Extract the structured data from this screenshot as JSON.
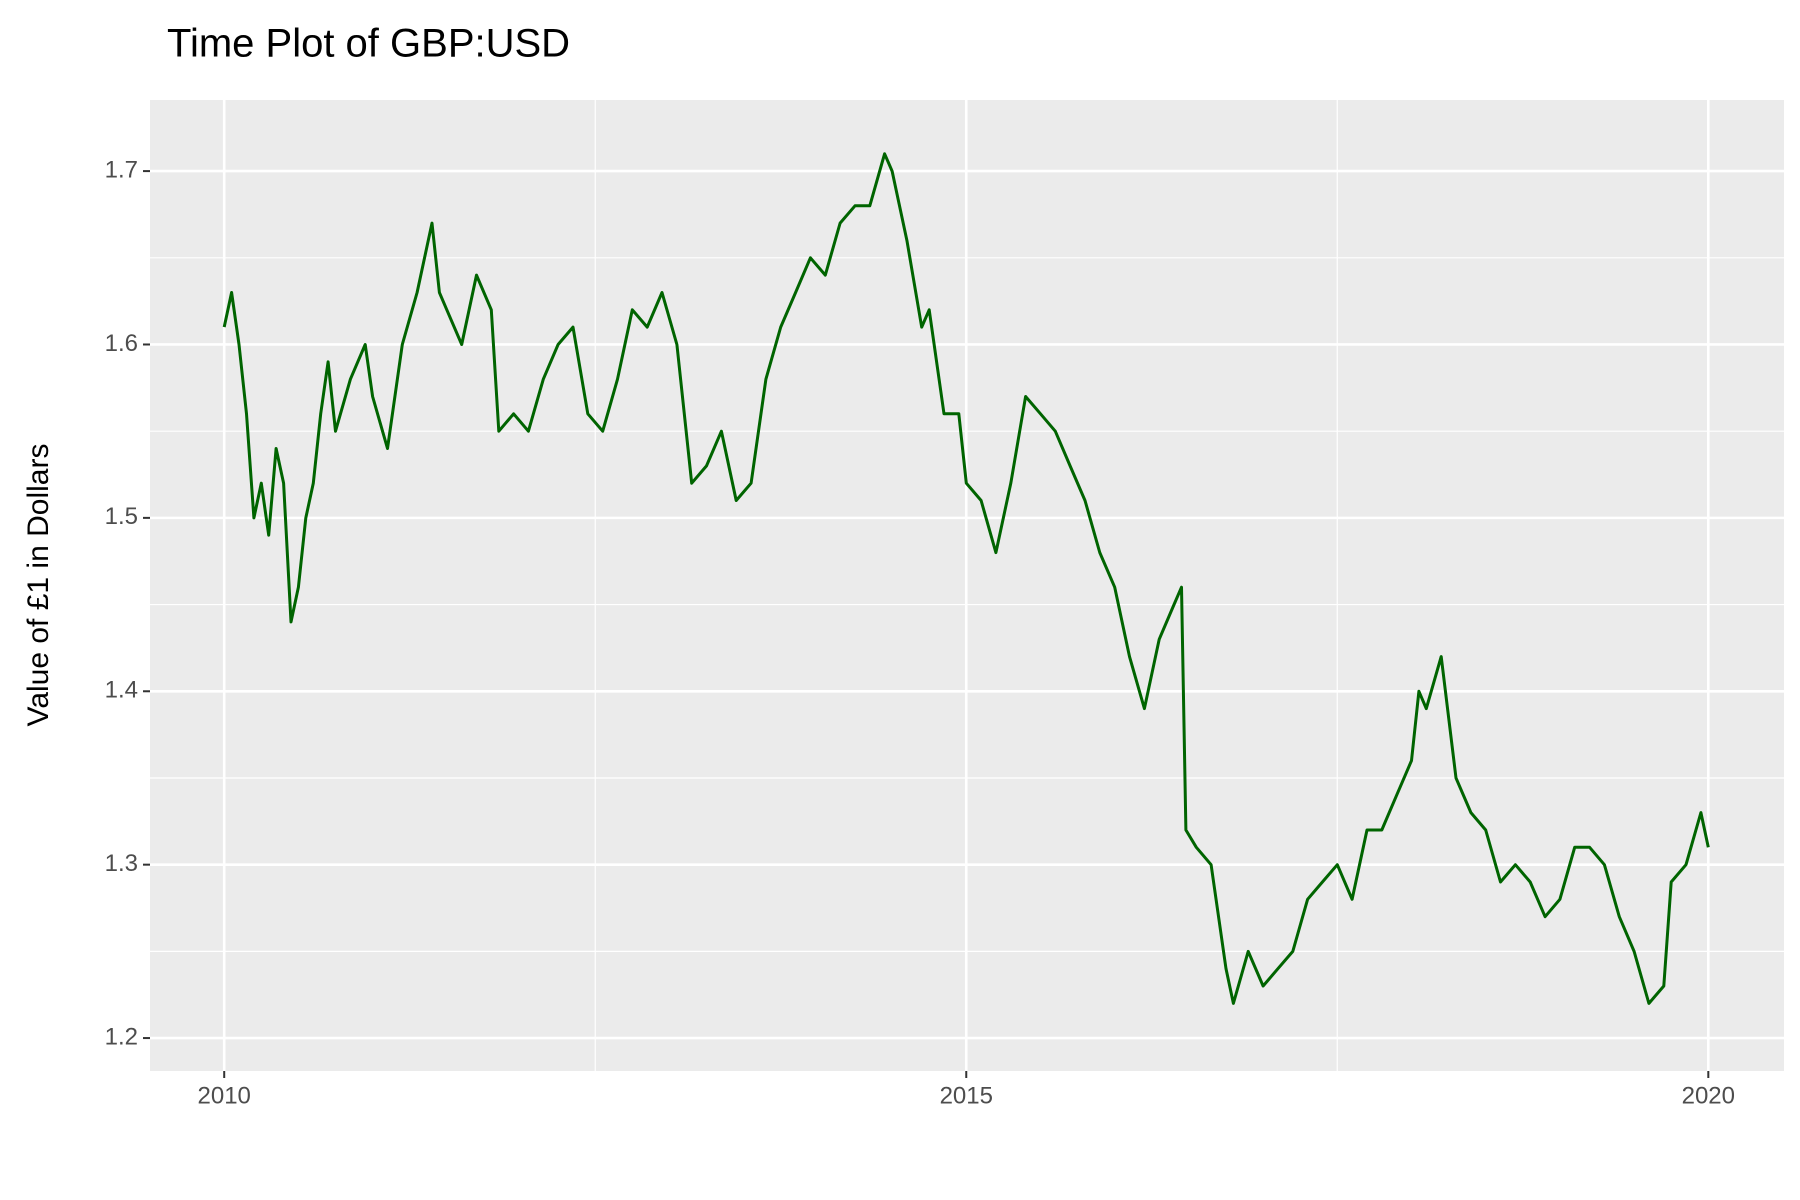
{
  "chart_data": {
    "type": "line",
    "title": "Time Plot of GBP:USD",
    "y_label": "Value of £1 in Dollars",
    "color": "#006400",
    "grid": true,
    "xlim": [
      2009.5,
      2020.51
    ],
    "xticks": [
      2010,
      2015,
      2020
    ],
    "ylim": [
      1.181,
      1.741
    ],
    "yticks": [
      1.2,
      1.3,
      1.4,
      1.5,
      1.6,
      1.7
    ],
    "x": [
      2010.0,
      2010.05,
      2010.1,
      2010.15,
      2010.2,
      2010.25,
      2010.3,
      2010.35,
      2010.4,
      2010.45,
      2010.5,
      2010.55,
      2010.6,
      2010.65,
      2010.7,
      2010.75,
      2010.85,
      2010.95,
      2011.0,
      2011.1,
      2011.2,
      2011.3,
      2011.4,
      2011.45,
      2011.5,
      2011.6,
      2011.7,
      2011.8,
      2011.85,
      2011.95,
      2012.05,
      2012.15,
      2012.25,
      2012.35,
      2012.45,
      2012.55,
      2012.65,
      2012.75,
      2012.85,
      2012.95,
      2013.05,
      2013.15,
      2013.25,
      2013.35,
      2013.45,
      2013.55,
      2013.65,
      2013.75,
      2013.85,
      2013.95,
      2014.05,
      2014.15,
      2014.25,
      2014.35,
      2014.45,
      2014.5,
      2014.6,
      2014.7,
      2014.75,
      2014.85,
      2014.95,
      2015.0,
      2015.1,
      2015.2,
      2015.3,
      2015.4,
      2015.5,
      2015.6,
      2015.7,
      2015.8,
      2015.9,
      2016.0,
      2016.1,
      2016.2,
      2016.3,
      2016.4,
      2016.45,
      2016.48,
      2016.55,
      2016.65,
      2016.75,
      2016.8,
      2016.9,
      2017.0,
      2017.1,
      2017.2,
      2017.3,
      2017.4,
      2017.5,
      2017.6,
      2017.7,
      2017.8,
      2017.9,
      2018.0,
      2018.05,
      2018.1,
      2018.2,
      2018.3,
      2018.4,
      2018.5,
      2018.6,
      2018.7,
      2018.8,
      2018.9,
      2019.0,
      2019.1,
      2019.2,
      2019.3,
      2019.4,
      2019.5,
      2019.6,
      2019.7,
      2019.75,
      2019.85,
      2019.95,
      2020.0
    ],
    "values": [
      1.61,
      1.63,
      1.6,
      1.56,
      1.5,
      1.52,
      1.49,
      1.54,
      1.52,
      1.44,
      1.46,
      1.5,
      1.52,
      1.56,
      1.59,
      1.55,
      1.58,
      1.6,
      1.57,
      1.54,
      1.6,
      1.63,
      1.67,
      1.63,
      1.62,
      1.6,
      1.64,
      1.62,
      1.55,
      1.56,
      1.55,
      1.58,
      1.6,
      1.61,
      1.56,
      1.55,
      1.58,
      1.62,
      1.61,
      1.63,
      1.6,
      1.52,
      1.53,
      1.55,
      1.51,
      1.52,
      1.58,
      1.61,
      1.63,
      1.65,
      1.64,
      1.67,
      1.68,
      1.68,
      1.71,
      1.7,
      1.66,
      1.61,
      1.62,
      1.56,
      1.56,
      1.52,
      1.51,
      1.48,
      1.52,
      1.57,
      1.56,
      1.55,
      1.53,
      1.51,
      1.48,
      1.46,
      1.42,
      1.39,
      1.43,
      1.45,
      1.46,
      1.32,
      1.31,
      1.3,
      1.24,
      1.22,
      1.25,
      1.23,
      1.24,
      1.25,
      1.28,
      1.29,
      1.3,
      1.28,
      1.32,
      1.32,
      1.34,
      1.36,
      1.4,
      1.39,
      1.42,
      1.35,
      1.33,
      1.32,
      1.29,
      1.3,
      1.29,
      1.27,
      1.28,
      1.31,
      1.31,
      1.3,
      1.27,
      1.25,
      1.22,
      1.23,
      1.29,
      1.3,
      1.33,
      1.31
    ]
  }
}
